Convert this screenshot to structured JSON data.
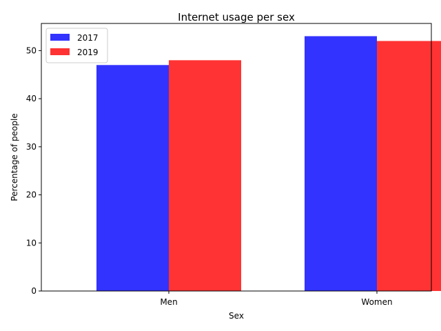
{
  "chart_data": {
    "type": "bar",
    "title": "Internet usage per sex",
    "xlabel": "Sex",
    "ylabel": "Percentage of people",
    "categories": [
      "Men",
      "Women"
    ],
    "series": [
      {
        "name": "2017",
        "values": [
          47,
          53
        ],
        "color": "#3333ff"
      },
      {
        "name": "2019",
        "values": [
          48,
          52
        ],
        "color": "#ff3333"
      }
    ],
    "ylim": [
      0,
      55.65
    ],
    "yticks": [
      0,
      10,
      20,
      30,
      40,
      50
    ],
    "grid": false,
    "legend_position": "top-left"
  }
}
